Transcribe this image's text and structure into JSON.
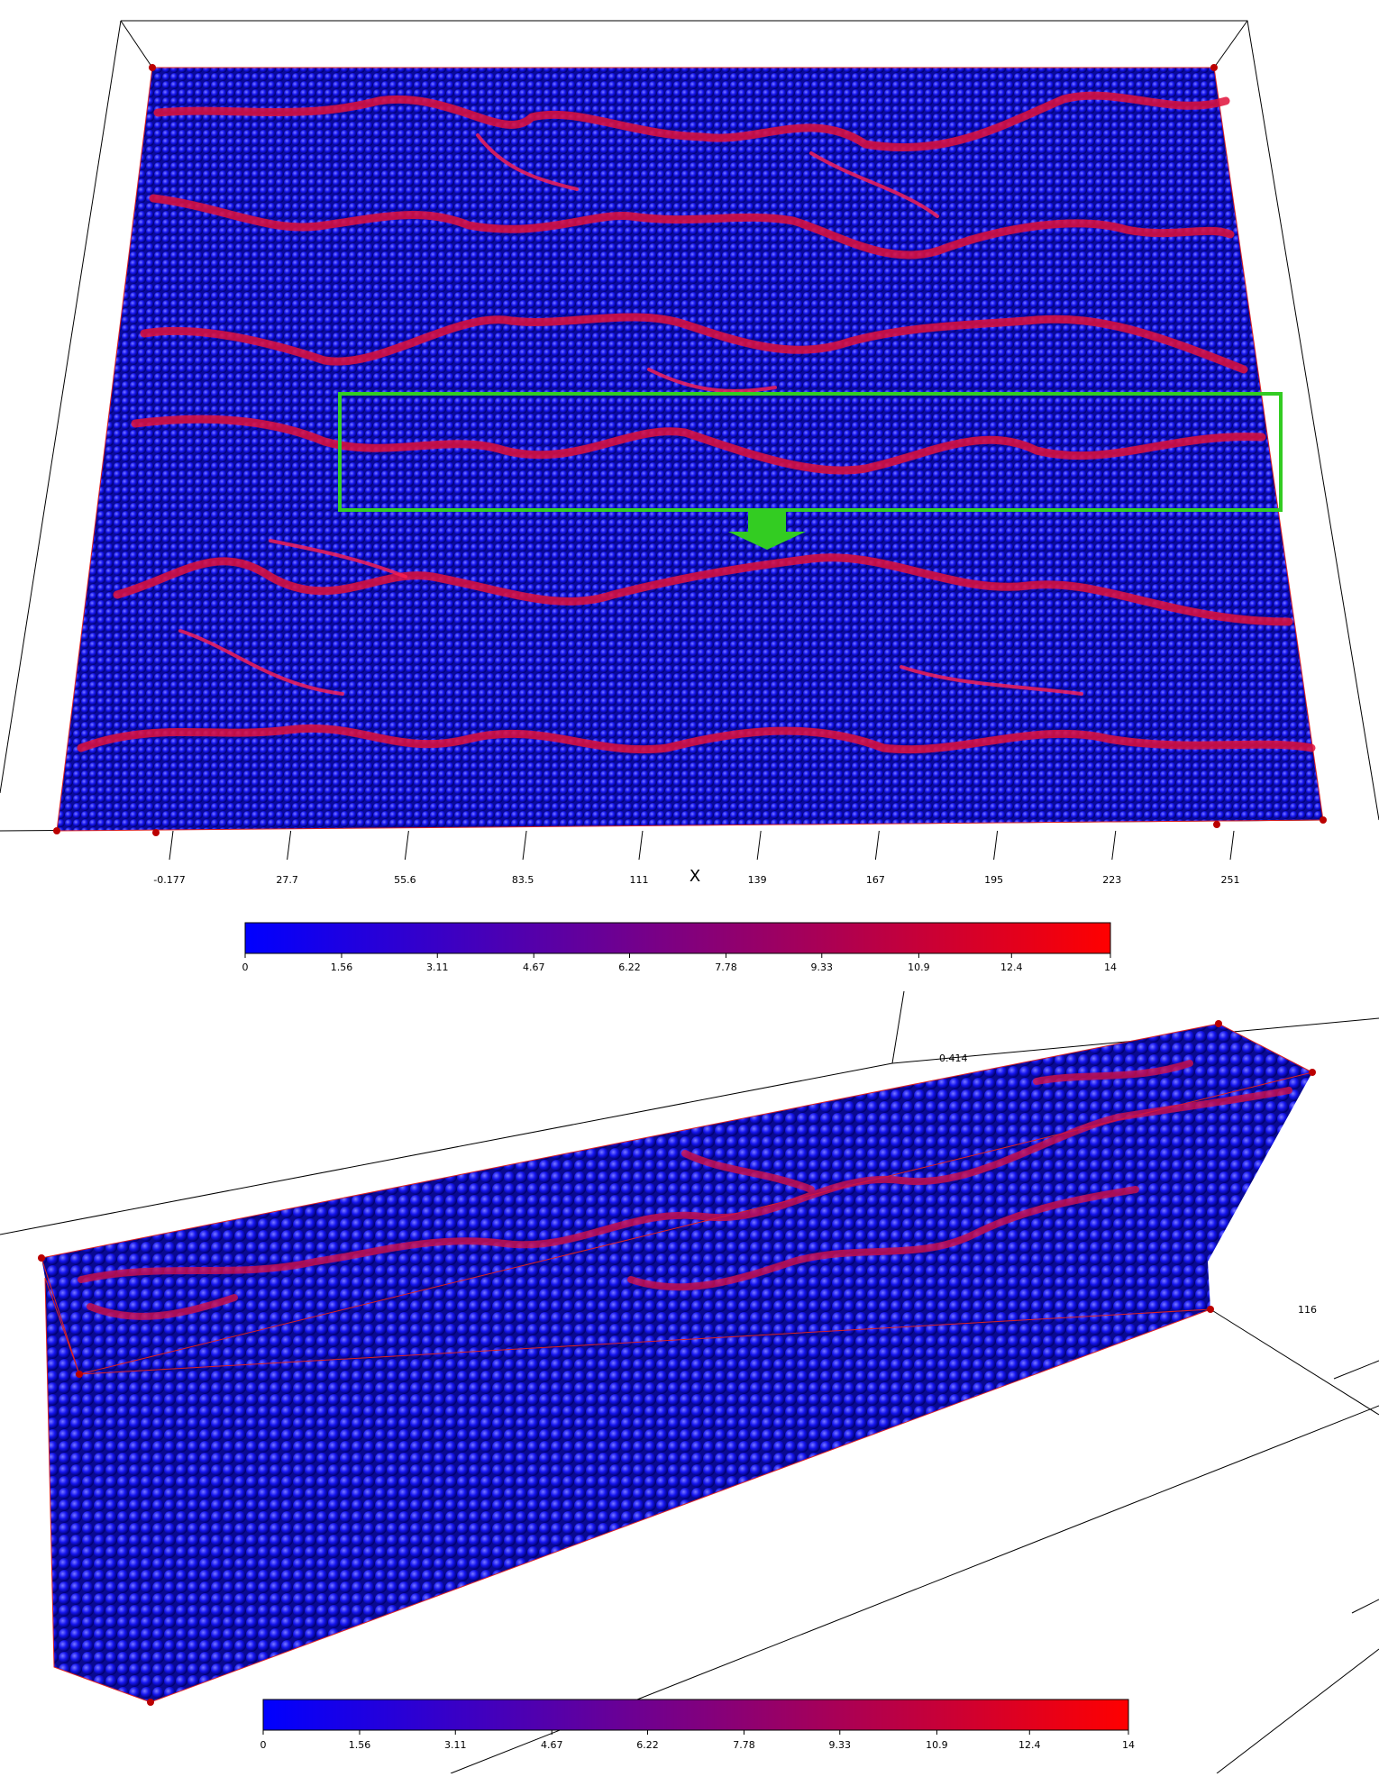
{
  "top_view": {
    "x_axis": {
      "label": "X",
      "ticks": [
        -0.177,
        27.7,
        55.6,
        83.5,
        111,
        139,
        167,
        195,
        223,
        251
      ]
    },
    "colorbar": {
      "ticks": [
        0,
        1.56,
        3.11,
        4.67,
        6.22,
        7.78,
        9.33,
        10.9,
        12.4,
        14
      ]
    }
  },
  "side_view": {
    "axis_labels": [
      0.414,
      116
    ],
    "colorbar": {
      "ticks": [
        0,
        1.56,
        3.11,
        4.67,
        6.22,
        7.78,
        9.33,
        10.9,
        12.4,
        14
      ]
    }
  }
}
